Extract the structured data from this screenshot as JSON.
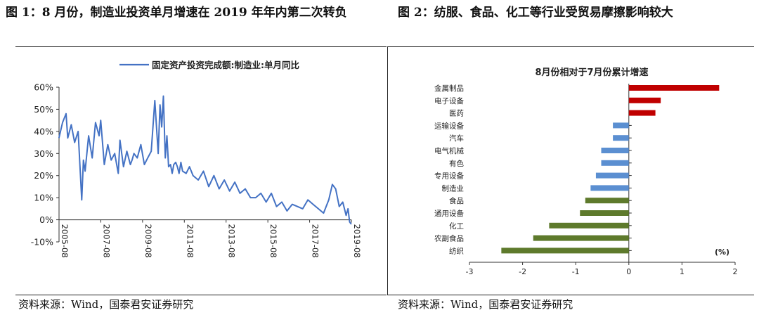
{
  "titles": {
    "left": "图 1：8 月份，制造业投资单月增速在 2019 年年内第二次转负",
    "right": "图 2：纺服、食品、化工等行业受贸易摩擦影响较大"
  },
  "sources": {
    "left": "资料来源：Wind，国泰君安证券研究",
    "right": "资料来源：Wind，国泰君安证券研究"
  },
  "colors": {
    "line": "#4472C4",
    "red": "#C00000",
    "blue": "#5B8FD1",
    "green": "#5E7A2C"
  },
  "chart_data": [
    {
      "type": "line",
      "legend": "固定资产投资完成额:制造业:单月同比",
      "y_tick_labels": [
        "60%",
        "50%",
        "40%",
        "30%",
        "20%",
        "10%",
        "0%",
        "-10%"
      ],
      "x_tick_labels": [
        "2005-08",
        "2007-08",
        "2009-08",
        "2011-08",
        "2013-08",
        "2015-08",
        "2017-08",
        "2019-08"
      ],
      "ylim": [
        -10,
        60
      ],
      "xlim": [
        2005.583,
        2019.583
      ],
      "x": [
        2005.58,
        2005.75,
        2005.92,
        2006.0,
        2006.17,
        2006.33,
        2006.5,
        2006.67,
        2006.75,
        2006.83,
        2007.0,
        2007.17,
        2007.33,
        2007.5,
        2007.58,
        2007.75,
        2007.92,
        2008.08,
        2008.25,
        2008.42,
        2008.5,
        2008.67,
        2008.83,
        2009.0,
        2009.08,
        2009.17,
        2009.33,
        2009.5,
        2009.67,
        2009.83,
        2010.0,
        2010.17,
        2010.33,
        2010.42,
        2010.5,
        2010.58,
        2010.67,
        2010.75,
        2010.83,
        2010.92,
        2011.0,
        2011.08,
        2011.17,
        2011.25,
        2011.33,
        2011.42,
        2011.5,
        2011.67,
        2011.83,
        2012.0,
        2012.25,
        2012.5,
        2012.75,
        2013.0,
        2013.25,
        2013.5,
        2013.75,
        2014.0,
        2014.25,
        2014.5,
        2014.75,
        2015.0,
        2015.25,
        2015.5,
        2015.75,
        2016.0,
        2016.25,
        2016.5,
        2016.75,
        2017.0,
        2017.25,
        2017.5,
        2017.75,
        2018.0,
        2018.25,
        2018.5,
        2018.67,
        2018.83,
        2019.0,
        2019.17,
        2019.33,
        2019.42,
        2019.5,
        2019.58
      ],
      "values": [
        37,
        44,
        48,
        37,
        43,
        35,
        40,
        9,
        27,
        22,
        38,
        28,
        44,
        38,
        45,
        25,
        34,
        27,
        30,
        21,
        36,
        24,
        31,
        25,
        27,
        30,
        28,
        34,
        25,
        28,
        31,
        54,
        30,
        52,
        42,
        56,
        28,
        38,
        24,
        25,
        21,
        25,
        26,
        24,
        21,
        26,
        22,
        21,
        24,
        20,
        18,
        22,
        15,
        20,
        14,
        18,
        13,
        17,
        12,
        14,
        10,
        10,
        12,
        8,
        12,
        6,
        8,
        4,
        7,
        6,
        5,
        9,
        7,
        5,
        3,
        9,
        16,
        14,
        6,
        8,
        2,
        5,
        -1,
        -2
      ]
    },
    {
      "type": "bar",
      "orientation": "horizontal",
      "title": "8月份相对于7月份累计增速",
      "unit_label": "(%)",
      "categories": [
        "金属制品",
        "电子设备",
        "医药",
        "运输设备",
        "汽车",
        "电气机械",
        "有色",
        "专用设备",
        "制造业",
        "食品",
        "通用设备",
        "化工",
        "农副食品",
        "纺织"
      ],
      "values": [
        1.7,
        0.6,
        0.5,
        -0.3,
        -0.3,
        -0.52,
        -0.52,
        -0.62,
        -0.72,
        -0.82,
        -0.92,
        -1.5,
        -1.8,
        -2.4
      ],
      "bar_colors": [
        "red",
        "red",
        "red",
        "blue",
        "blue",
        "blue",
        "blue",
        "blue",
        "blue",
        "green",
        "green",
        "green",
        "green",
        "green"
      ],
      "x_tick_labels": [
        "-3",
        "-2",
        "-1",
        "0",
        "1",
        "2"
      ],
      "xlim": [
        -3,
        2
      ]
    }
  ]
}
